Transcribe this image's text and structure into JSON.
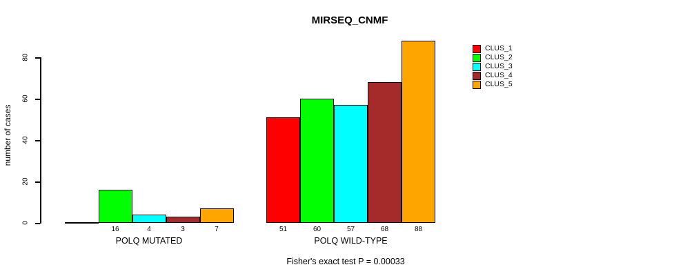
{
  "chart_data": {
    "type": "bar",
    "title": "MIRSEQ_CNMF",
    "ylabel": "number of cases",
    "xlabel": "",
    "ylim": [
      0,
      80
    ],
    "yticks": [
      0,
      20,
      40,
      60,
      80
    ],
    "grid": false,
    "legend_position": "right-outside",
    "categories": [
      "POLQ MUTATED",
      "POLQ WILD-TYPE"
    ],
    "series": [
      {
        "name": "CLUS_1",
        "color": "#FF0000",
        "values": [
          0,
          51
        ]
      },
      {
        "name": "CLUS_2",
        "color": "#00FF00",
        "values": [
          16,
          60
        ]
      },
      {
        "name": "CLUS_3",
        "color": "#00FFFF",
        "values": [
          4,
          57
        ]
      },
      {
        "name": "CLUS_4",
        "color": "#A52A2A",
        "values": [
          3,
          68
        ]
      },
      {
        "name": "CLUS_5",
        "color": "#FFA500",
        "values": [
          7,
          88
        ]
      }
    ],
    "bar_value_labels_shown": [
      "16",
      "4",
      "3",
      "7",
      "51",
      "60",
      "57",
      "68",
      "88"
    ],
    "annotation": "Fisher's exact test P = 0.00033",
    "bar_border_color": "#000000",
    "axis_color": "#000000",
    "background_color": "#FFFFFF"
  }
}
